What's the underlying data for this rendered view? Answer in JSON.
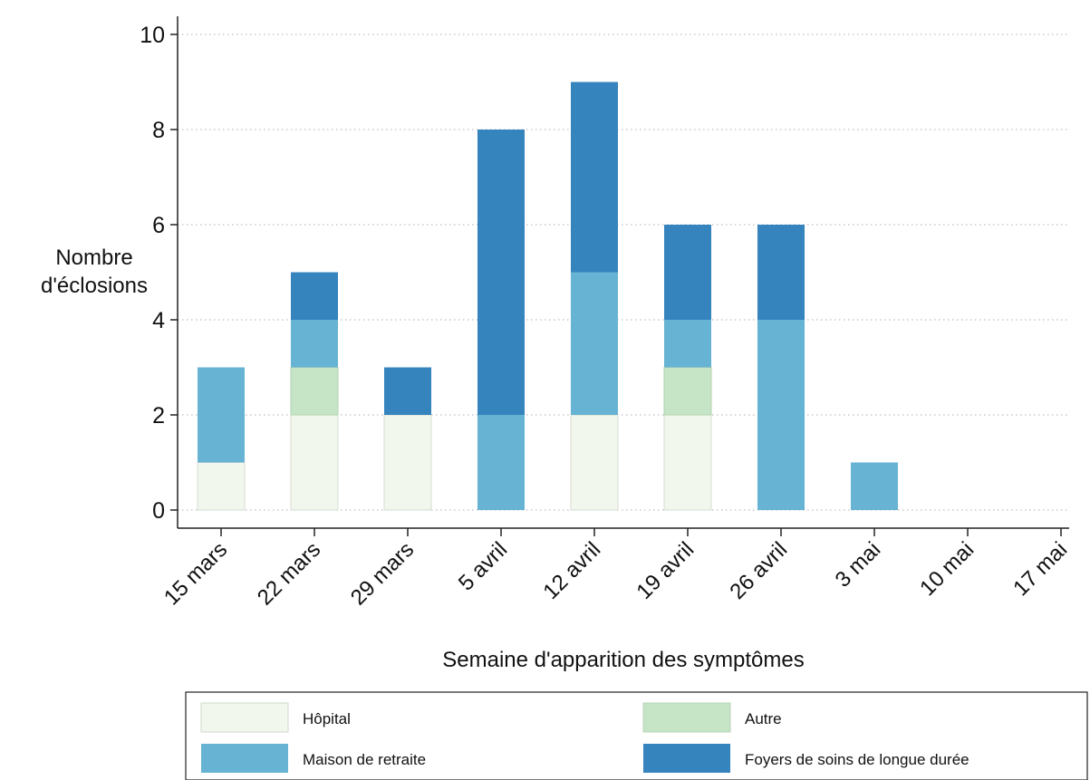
{
  "chart_data": {
    "type": "bar",
    "stacked": true,
    "title": "",
    "xlabel": "Semaine d'apparition des symptômes",
    "ylabel_lines": [
      "Nombre",
      "d'éclosions"
    ],
    "ylim": [
      0,
      10
    ],
    "yticks": [
      0,
      2,
      4,
      6,
      8,
      10
    ],
    "grid": "horizontal dotted",
    "legend_position": "bottom",
    "categories": [
      "15 mars",
      "22 mars",
      "29 mars",
      "5 avril",
      "12 avril",
      "19 avril",
      "26 avril",
      "3 mai",
      "10 mai",
      "17 mai"
    ],
    "series": [
      {
        "name": "Hôpital",
        "color": "#f1f7ec",
        "values": [
          1,
          2,
          2,
          0,
          2,
          2,
          0,
          0,
          0,
          0
        ]
      },
      {
        "name": "Autre",
        "color": "#c6e5c6",
        "values": [
          0,
          1,
          0,
          0,
          0,
          1,
          0,
          0,
          0,
          0
        ]
      },
      {
        "name": "Maison de retraite",
        "color": "#67b3d4",
        "values": [
          2,
          1,
          0,
          2,
          3,
          1,
          4,
          1,
          0,
          0
        ]
      },
      {
        "name": "Foyers de soins de longue durée",
        "color": "#3684bd",
        "values": [
          0,
          1,
          1,
          6,
          4,
          2,
          2,
          0,
          0,
          0
        ]
      }
    ]
  }
}
